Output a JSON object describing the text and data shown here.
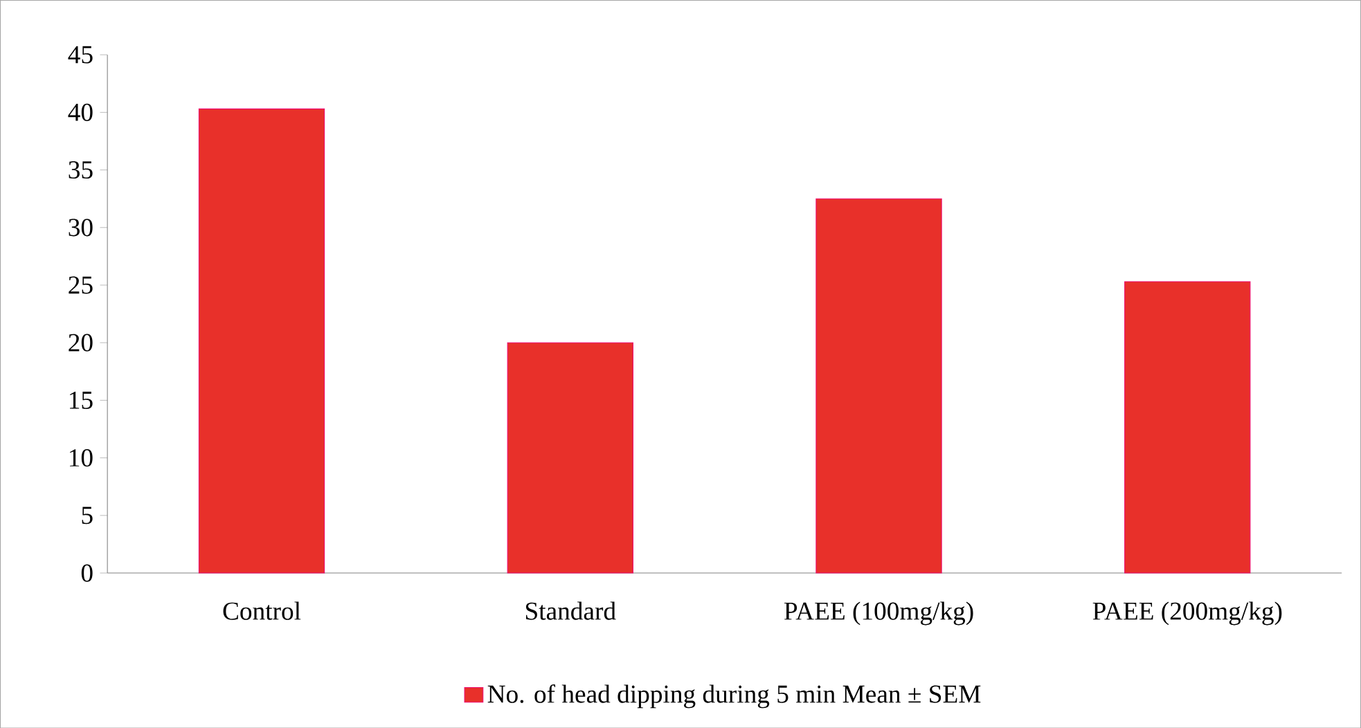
{
  "chart_data": {
    "type": "bar",
    "categories": [
      "Control",
      "Standard",
      "PAEE (100mg/kg)",
      "PAEE (200mg/kg)"
    ],
    "series": [
      {
        "name": "No. of head dipping during 5 min Mean ± SEM",
        "color": "#e8302a",
        "values": [
          40.3,
          20,
          32.5,
          25.3
        ]
      }
    ],
    "ylim": [
      0,
      45
    ],
    "yticks": [
      0,
      5,
      10,
      15,
      20,
      25,
      30,
      35,
      40,
      45
    ],
    "grid": false,
    "legend": "bottom"
  }
}
